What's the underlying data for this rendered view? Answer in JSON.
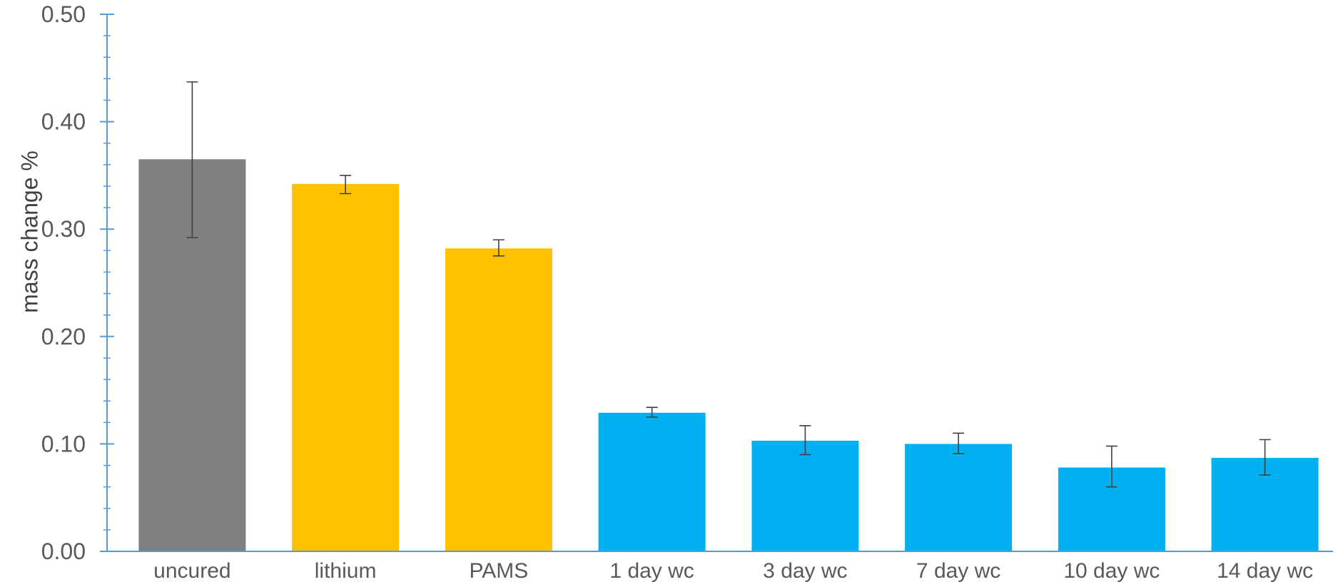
{
  "colors": {
    "axis": "#5b9bd5",
    "error_bar": "#404040",
    "gray": "#7f7f7f",
    "gold": "#ffc000",
    "blue": "#00b0f0"
  },
  "chart_data": {
    "type": "bar",
    "title": "",
    "xlabel": "",
    "ylabel": "mass change %",
    "ylim": [
      0,
      0.5
    ],
    "y_ticks": [
      "0.00",
      "0.10",
      "0.20",
      "0.30",
      "0.40",
      "0.50"
    ],
    "y_tick_values": [
      0,
      0.1,
      0.2,
      0.3,
      0.4,
      0.5
    ],
    "minor_tick_step": 0.02,
    "grid": false,
    "categories": [
      "uncured",
      "lithium",
      "PAMS",
      "1 day wc",
      "3 day wc",
      "7 day wc",
      "10 day wc",
      "14 day wc"
    ],
    "values": [
      0.365,
      0.342,
      0.282,
      0.129,
      0.103,
      0.1,
      0.078,
      0.087
    ],
    "error_low": [
      0.292,
      0.333,
      0.275,
      0.125,
      0.09,
      0.091,
      0.06,
      0.071
    ],
    "error_high": [
      0.437,
      0.35,
      0.29,
      0.134,
      0.117,
      0.11,
      0.098,
      0.104
    ],
    "bar_colors": [
      "gray",
      "gold",
      "gold",
      "blue",
      "blue",
      "blue",
      "blue",
      "blue"
    ]
  }
}
